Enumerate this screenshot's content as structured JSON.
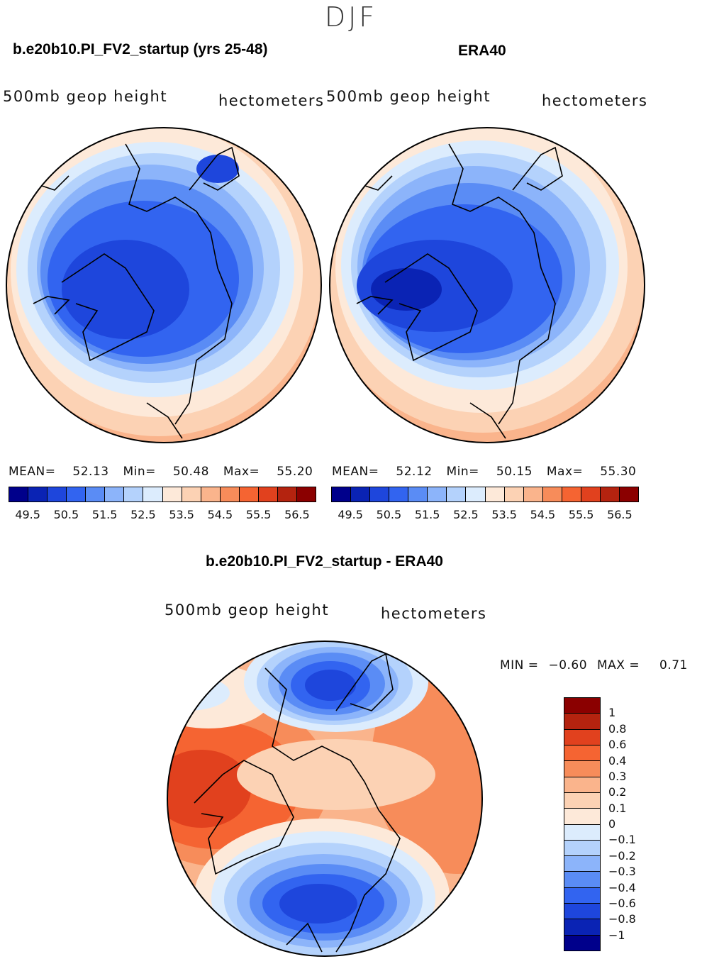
{
  "season": "DJF",
  "panels": [
    {
      "title": "b.e20b10.PI_FV2_startup (yrs 25-48)",
      "variable": "500mb geop height",
      "units": "hectometers",
      "stats": {
        "mean_label": "MEAN=",
        "mean": "52.13",
        "min_label": "Min=",
        "min": "50.48",
        "max_label": "Max=",
        "max": "55.20"
      }
    },
    {
      "title": "ERA40",
      "variable": "500mb geop height",
      "units": "hectometers",
      "stats": {
        "mean_label": "MEAN=",
        "mean": "52.12",
        "min_label": "Min=",
        "min": "50.15",
        "max_label": "Max=",
        "max": "55.30"
      }
    },
    {
      "title": "b.e20b10.PI_FV2_startup - ERA40",
      "variable": "500mb geop height",
      "units": "hectometers",
      "stats": {
        "min_label": "MIN =",
        "min": "−0.60",
        "max_label": "MAX =",
        "max": "0.71"
      }
    }
  ],
  "colorbar_abs": {
    "colors": [
      "#00008b",
      "#0a23b4",
      "#1e46dc",
      "#3264f0",
      "#5a8cf5",
      "#8cb4fa",
      "#b4d2fc",
      "#dcecfd",
      "#fde9d9",
      "#fcd2b4",
      "#fab48c",
      "#f78c5a",
      "#f56432",
      "#e1411e",
      "#b4230f",
      "#8b0000"
    ],
    "labels": [
      "49.5",
      "50.5",
      "51.5",
      "52.5",
      "53.5",
      "54.5",
      "55.5",
      "56.5"
    ]
  },
  "colorbar_diff": {
    "colors": [
      "#8b0000",
      "#b4230f",
      "#e1411e",
      "#f56432",
      "#f78c5a",
      "#fab48c",
      "#fcd2b4",
      "#fde9d9",
      "#dcecfd",
      "#b4d2fc",
      "#8cb4fa",
      "#5a8cf5",
      "#3264f0",
      "#1e46dc",
      "#0a23b4",
      "#00008b"
    ],
    "labels": [
      "1",
      "0.8",
      "0.6",
      "0.4",
      "0.3",
      "0.2",
      "0.1",
      "0",
      "−0.1",
      "−0.2",
      "−0.3",
      "−0.4",
      "−0.6",
      "−0.8",
      "−1"
    ]
  }
}
